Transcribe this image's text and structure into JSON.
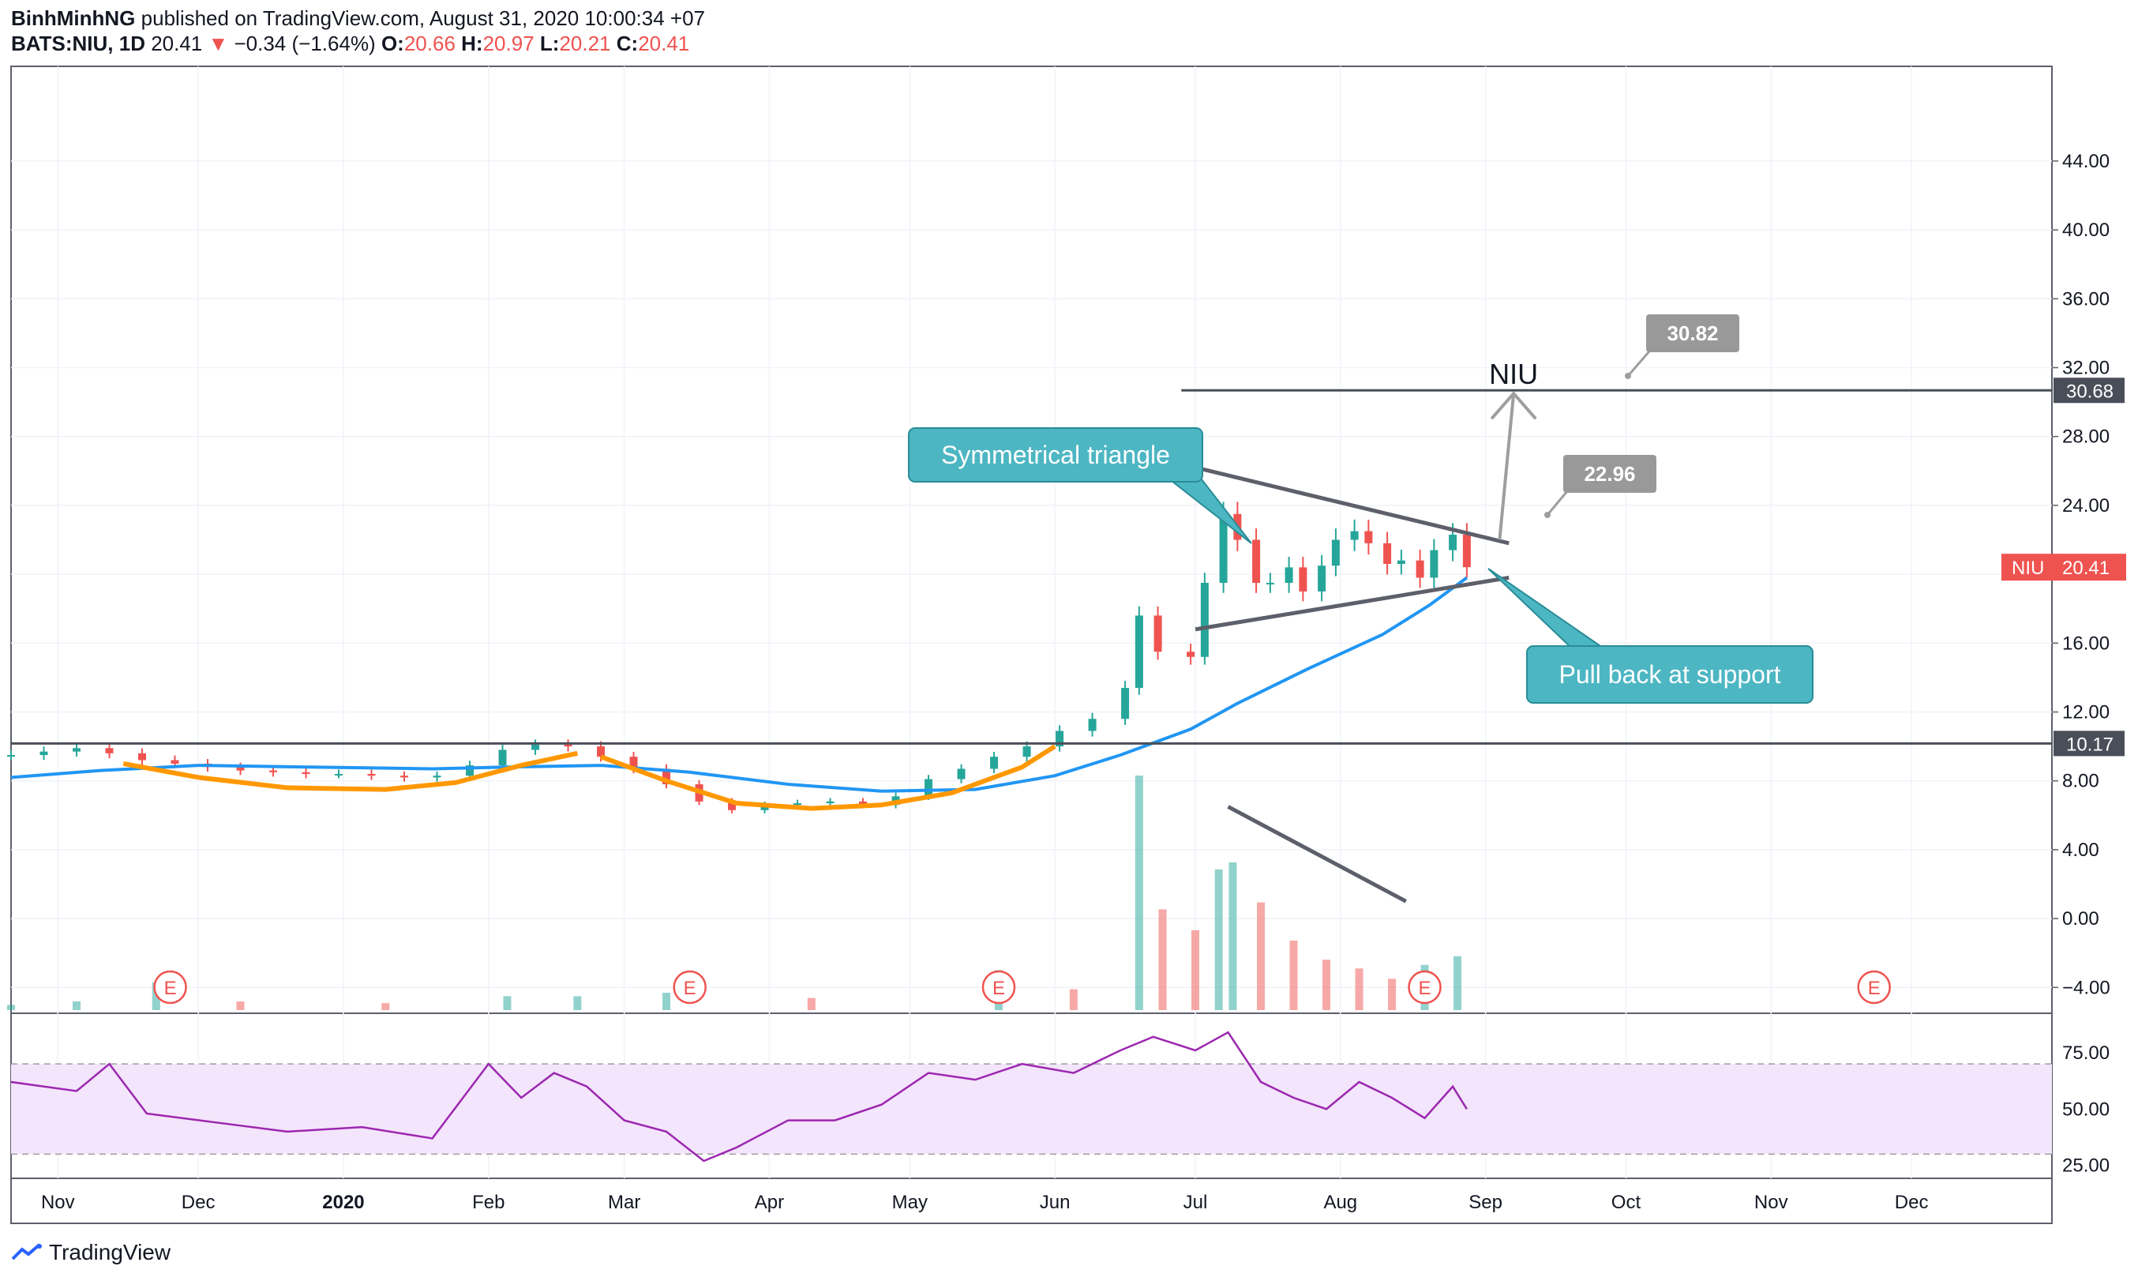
{
  "header": {
    "author": "BinhMinhNG",
    "published": "published on TradingView.com, August 31, 2020 10:00:34 +07",
    "symbol": "BATS:NIU, 1D",
    "last": "20.41",
    "arrow": "▼",
    "change": "−0.34 (−1.64%)",
    "o_label": "O:",
    "o_val": "20.66",
    "h_label": "H:",
    "h_val": "20.97",
    "l_label": "L:",
    "l_val": "20.21",
    "c_label": "C:",
    "c_val": "20.41"
  },
  "footer": {
    "brand": "TradingView"
  },
  "colors": {
    "up": "#26a69a",
    "down": "#ef5350",
    "ma": "#2196f3",
    "curve": "#ff9800",
    "trend": "#5d606b",
    "callout": "#4db6c3",
    "rsi": "#9c27b0",
    "rsi_band": "#f3e5fb",
    "price_badge": "#ef5350",
    "level_badge": "#4a4e59",
    "target_badge": "#999999"
  },
  "chart_data": [
    {
      "type": "candlestick",
      "title": "",
      "y_ticks": [
        "44.00",
        "40.00",
        "36.00",
        "32.00",
        "28.00",
        "24.00",
        "20.00",
        "16.00",
        "12.00",
        "8.00",
        "4.00",
        "0.00",
        "−4.00"
      ],
      "x_ticks": [
        "Nov",
        "Dec",
        "2020",
        "Feb",
        "Mar",
        "Apr",
        "May",
        "Jun",
        "Jul",
        "Aug",
        "Sep",
        "Oct",
        "Nov",
        "Dec"
      ],
      "x_range": [
        "2019-10-22",
        "2020-12-31"
      ],
      "y_range": [
        -5.5,
        49.5
      ],
      "grid": true,
      "current_price": {
        "label": "NIU",
        "value": 20.41,
        "text": "20.41"
      },
      "horizontal_levels": [
        {
          "value": 10.17,
          "text": "10.17",
          "from": "2019-10-22"
        },
        {
          "value": 30.68,
          "text": "30.68",
          "from": "2020-06-28"
        }
      ],
      "annotations": {
        "symmetrical_triangle": "Symmetrical triangle",
        "pull_back": "Pull back at support",
        "target_symbol": "NIU",
        "target_1": "22.96",
        "target_2": "30.82"
      },
      "earnings_marker": "E",
      "earnings_dates": [
        "2019-11-25",
        "2020-03-15",
        "2020-05-20",
        "2020-08-19",
        "2020-11-23"
      ],
      "moving_average": [
        [
          "2019-10-22",
          8.2
        ],
        [
          "2019-11-10",
          8.6
        ],
        [
          "2019-12-01",
          8.9
        ],
        [
          "2019-12-25",
          8.8
        ],
        [
          "2020-01-20",
          8.7
        ],
        [
          "2020-02-05",
          8.8
        ],
        [
          "2020-02-25",
          8.9
        ],
        [
          "2020-03-15",
          8.5
        ],
        [
          "2020-04-05",
          7.8
        ],
        [
          "2020-04-25",
          7.4
        ],
        [
          "2020-05-15",
          7.5
        ],
        [
          "2020-06-01",
          8.3
        ],
        [
          "2020-06-15",
          9.5
        ],
        [
          "2020-06-30",
          11.0
        ],
        [
          "2020-07-10",
          12.5
        ],
        [
          "2020-07-25",
          14.5
        ],
        [
          "2020-08-10",
          16.5
        ],
        [
          "2020-08-20",
          18.2
        ],
        [
          "2020-08-28",
          19.8
        ]
      ],
      "cup_curves": [
        [
          [
            "2019-11-15",
            9.0
          ],
          [
            "2019-12-01",
            8.2
          ],
          [
            "2019-12-20",
            7.6
          ],
          [
            "2020-01-10",
            7.5
          ],
          [
            "2020-01-25",
            7.9
          ],
          [
            "2020-02-08",
            8.9
          ],
          [
            "2020-02-20",
            9.6
          ]
        ],
        [
          [
            "2020-02-25",
            9.4
          ],
          [
            "2020-03-10",
            8.0
          ],
          [
            "2020-03-25",
            6.7
          ],
          [
            "2020-04-10",
            6.4
          ],
          [
            "2020-04-25",
            6.6
          ],
          [
            "2020-05-10",
            7.3
          ],
          [
            "2020-05-25",
            8.8
          ],
          [
            "2020-06-01",
            10.0
          ]
        ]
      ],
      "triangle_lines": [
        [
          [
            "2020-07-01",
            26.2
          ],
          [
            "2020-09-06",
            21.8
          ]
        ],
        [
          [
            "2020-07-01",
            16.8
          ],
          [
            "2020-09-06",
            19.8
          ]
        ]
      ],
      "target_arrow": [
        [
          "2020-09-04",
          22.0
        ],
        [
          "2020-09-07",
          30.5
        ]
      ],
      "candles": [
        [
          "2019-10-22",
          9.5
        ],
        [
          "2019-10-29",
          9.7
        ],
        [
          "2019-11-05",
          9.9
        ],
        [
          "2019-11-12",
          9.6
        ],
        [
          "2019-11-19",
          9.2
        ],
        [
          "2019-11-26",
          9.0
        ],
        [
          "2019-12-03",
          8.8
        ],
        [
          "2019-12-10",
          8.6
        ],
        [
          "2019-12-17",
          8.5
        ],
        [
          "2019-12-24",
          8.4
        ],
        [
          "2019-12-31",
          8.4
        ],
        [
          "2020-01-07",
          8.3
        ],
        [
          "2020-01-14",
          8.2
        ],
        [
          "2020-01-21",
          8.3
        ],
        [
          "2020-01-28",
          8.9
        ],
        [
          "2020-02-04",
          9.8
        ],
        [
          "2020-02-11",
          10.1
        ],
        [
          "2020-02-18",
          10.0
        ],
        [
          "2020-02-25",
          9.4
        ],
        [
          "2020-03-03",
          8.7
        ],
        [
          "2020-03-10",
          7.8
        ],
        [
          "2020-03-17",
          6.8
        ],
        [
          "2020-03-24",
          6.3
        ],
        [
          "2020-03-31",
          6.6
        ],
        [
          "2020-04-07",
          6.7
        ],
        [
          "2020-04-14",
          6.8
        ],
        [
          "2020-04-21",
          6.6
        ],
        [
          "2020-04-28",
          7.1
        ],
        [
          "2020-05-05",
          8.1
        ],
        [
          "2020-05-12",
          8.7
        ],
        [
          "2020-05-19",
          9.4
        ],
        [
          "2020-05-26",
          10.0
        ],
        [
          "2020-06-02",
          10.9
        ],
        [
          "2020-06-09",
          11.6
        ],
        [
          "2020-06-16",
          13.4
        ],
        [
          "2020-06-19",
          17.6
        ],
        [
          "2020-06-23",
          15.5
        ],
        [
          "2020-06-30",
          15.2
        ],
        [
          "2020-07-03",
          19.5
        ],
        [
          "2020-07-07",
          23.5
        ],
        [
          "2020-07-10",
          22.0
        ],
        [
          "2020-07-14",
          19.5
        ],
        [
          "2020-07-17",
          19.5
        ],
        [
          "2020-07-21",
          20.4
        ],
        [
          "2020-07-24",
          19.0
        ],
        [
          "2020-07-28",
          20.5
        ],
        [
          "2020-07-31",
          22.0
        ],
        [
          "2020-08-04",
          22.5
        ],
        [
          "2020-08-07",
          21.8
        ],
        [
          "2020-08-11",
          20.6
        ],
        [
          "2020-08-14",
          20.8
        ],
        [
          "2020-08-18",
          19.8
        ],
        [
          "2020-08-21",
          21.4
        ],
        [
          "2020-08-25",
          22.3
        ],
        [
          "2020-08-28",
          20.41
        ]
      ],
      "volume_note": "volume bars plotted in the lower part of the price pane with its moving average",
      "volume": [
        [
          "2019-10-22",
          0.3
        ],
        [
          "2019-11-05",
          0.5
        ],
        [
          "2019-11-22",
          1.6
        ],
        [
          "2019-12-10",
          0.5
        ],
        [
          "2020-01-10",
          0.4
        ],
        [
          "2020-02-05",
          0.8
        ],
        [
          "2020-02-20",
          0.8
        ],
        [
          "2020-03-10",
          1.0
        ],
        [
          "2020-04-10",
          0.7
        ],
        [
          "2020-05-20",
          2.3
        ],
        [
          "2020-06-05",
          1.2
        ],
        [
          "2020-06-19",
          13.5
        ],
        [
          "2020-06-24",
          5.8
        ],
        [
          "2020-07-01",
          4.6
        ],
        [
          "2020-07-06",
          8.1
        ],
        [
          "2020-07-09",
          8.5
        ],
        [
          "2020-07-15",
          6.2
        ],
        [
          "2020-07-22",
          4.0
        ],
        [
          "2020-07-29",
          2.9
        ],
        [
          "2020-08-05",
          2.4
        ],
        [
          "2020-08-12",
          1.8
        ],
        [
          "2020-08-19",
          2.6
        ],
        [
          "2020-08-26",
          3.1
        ]
      ],
      "volume_trend_line": [
        [
          "2020-07-08",
          6.5
        ],
        [
          "2020-08-15",
          1.0
        ]
      ]
    },
    {
      "type": "line",
      "title": "",
      "y_ticks": [
        "75.00",
        "50.00",
        "25.00"
      ],
      "y_range": [
        20,
        90
      ],
      "band": [
        30,
        70
      ],
      "series": [
        {
          "values": [
            [
              "2019-10-22",
              62
            ],
            [
              "2019-11-05",
              58
            ],
            [
              "2019-11-12",
              70
            ],
            [
              "2019-11-20",
              48
            ],
            [
              "2019-12-05",
              44
            ],
            [
              "2019-12-20",
              40
            ],
            [
              "2020-01-05",
              42
            ],
            [
              "2020-01-20",
              37
            ],
            [
              "2020-02-01",
              70
            ],
            [
              "2020-02-08",
              55
            ],
            [
              "2020-02-15",
              66
            ],
            [
              "2020-02-22",
              60
            ],
            [
              "2020-03-01",
              45
            ],
            [
              "2020-03-10",
              40
            ],
            [
              "2020-03-18",
              27
            ],
            [
              "2020-03-25",
              33
            ],
            [
              "2020-04-05",
              45
            ],
            [
              "2020-04-15",
              45
            ],
            [
              "2020-04-25",
              52
            ],
            [
              "2020-05-05",
              66
            ],
            [
              "2020-05-15",
              63
            ],
            [
              "2020-05-25",
              70
            ],
            [
              "2020-06-05",
              66
            ],
            [
              "2020-06-15",
              76
            ],
            [
              "2020-06-22",
              82
            ],
            [
              "2020-07-01",
              76
            ],
            [
              "2020-07-08",
              84
            ],
            [
              "2020-07-15",
              62
            ],
            [
              "2020-07-22",
              55
            ],
            [
              "2020-07-29",
              50
            ],
            [
              "2020-08-05",
              62
            ],
            [
              "2020-08-12",
              55
            ],
            [
              "2020-08-19",
              46
            ],
            [
              "2020-08-25",
              60
            ],
            [
              "2020-08-28",
              50
            ]
          ]
        }
      ]
    }
  ]
}
